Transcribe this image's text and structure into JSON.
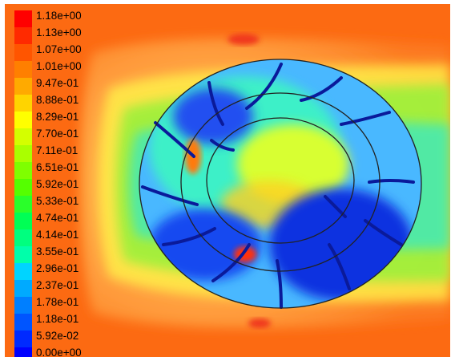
{
  "legend": {
    "labels": [
      "1.18e+00",
      "1.13e+00",
      "1.07e+00",
      "1.01e+00",
      "9.47e-01",
      "8.88e-01",
      "8.29e-01",
      "7.70e-01",
      "7.11e-01",
      "6.51e-01",
      "5.92e-01",
      "5.33e-01",
      "4.74e-01",
      "4.14e-01",
      "3.55e-01",
      "2.96e-01",
      "2.37e-01",
      "1.78e-01",
      "1.18e-01",
      "5.92e-02",
      "0.00e+00"
    ],
    "colors": [
      "#ff0000",
      "#ff2a00",
      "#ff5500",
      "#ff7f00",
      "#ffaa00",
      "#ffd400",
      "#ffff00",
      "#d4ff00",
      "#aaff00",
      "#7fff00",
      "#55ff00",
      "#2aff2a",
      "#00ff55",
      "#00ff7f",
      "#00ffaa",
      "#00d4ff",
      "#00aaff",
      "#007fff",
      "#0055ff",
      "#002aff",
      "#0000ff"
    ]
  },
  "colors": {
    "background_flow": "#fc6a12",
    "wake": "#ffa64d",
    "rings": "#222222",
    "blades": "#0a1a9a"
  },
  "icons": [
    "legend-swatch",
    "contour-plot"
  ]
}
